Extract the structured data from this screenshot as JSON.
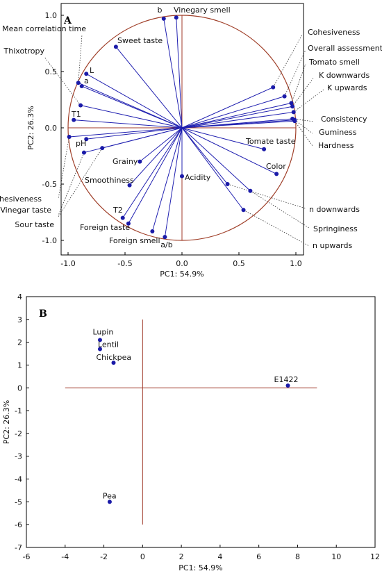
{
  "chart_data": [
    {
      "panel": "A",
      "type": "scatter",
      "subtype": "pca-loadings",
      "xlabel": "PC1: 54.9%",
      "ylabel": "PC2: 26.3%",
      "xlim": [
        -1.0,
        1.0
      ],
      "ylim": [
        -1.0,
        1.0
      ],
      "xticks": [
        "-1.0",
        "-0.5",
        "0.0",
        "0.5",
        "1.0"
      ],
      "yticks": [
        "1.0",
        "0.5",
        "0.0",
        "-0.5",
        "-1.0"
      ],
      "unit_circle": true,
      "points": [
        {
          "label": "b",
          "x": -0.16,
          "y": 0.97
        },
        {
          "label": "Vinegary smell",
          "x": -0.05,
          "y": 0.98
        },
        {
          "label": "Sweet taste",
          "x": -0.58,
          "y": 0.72
        },
        {
          "label": "L",
          "x": -0.84,
          "y": 0.48
        },
        {
          "label": "a",
          "x": -0.88,
          "y": 0.37
        },
        {
          "label": "Mean correlation time",
          "x": -0.91,
          "y": 0.4
        },
        {
          "label": "Thixotropy",
          "x": -0.89,
          "y": 0.2
        },
        {
          "label": "T1",
          "x": -0.95,
          "y": 0.07
        },
        {
          "label": "Adhesiveness",
          "x": -0.99,
          "y": -0.08
        },
        {
          "label": "pH",
          "x": -0.84,
          "y": -0.1
        },
        {
          "label": "Vinegar taste",
          "x": -0.86,
          "y": -0.22
        },
        {
          "label": "Sour taste",
          "x": -0.7,
          "y": -0.18
        },
        {
          "label": "Grainy",
          "x": -0.37,
          "y": -0.3
        },
        {
          "label": "Smoothiness",
          "x": -0.46,
          "y": -0.51
        },
        {
          "label": "T2",
          "x": -0.52,
          "y": -0.8
        },
        {
          "label": "Foreign taste",
          "x": -0.47,
          "y": -0.85
        },
        {
          "label": "Foreign smell",
          "x": -0.26,
          "y": -0.92
        },
        {
          "label": "a/b",
          "x": -0.15,
          "y": -0.97
        },
        {
          "label": "Acidity",
          "x": 0.0,
          "y": -0.43
        },
        {
          "label": "Cohesiveness",
          "x": 0.8,
          "y": 0.36
        },
        {
          "label": "Overall assessment",
          "x": 0.9,
          "y": 0.28
        },
        {
          "label": "Tomato smell",
          "x": 0.96,
          "y": 0.22
        },
        {
          "label": "K downwards",
          "x": 0.97,
          "y": 0.19
        },
        {
          "label": "K upwards",
          "x": 0.98,
          "y": 0.14
        },
        {
          "label": "Consistency",
          "x": 0.97,
          "y": 0.08
        },
        {
          "label": "Guminess",
          "x": 0.99,
          "y": 0.07
        },
        {
          "label": "Hardness",
          "x": 0.99,
          "y": 0.06
        },
        {
          "label": "Tomate taste",
          "x": 0.72,
          "y": -0.19
        },
        {
          "label": "Color",
          "x": 0.83,
          "y": -0.41
        },
        {
          "label": "n downwards",
          "x": 0.4,
          "y": -0.5
        },
        {
          "label": "Springiness",
          "x": 0.6,
          "y": -0.56
        },
        {
          "label": "n upwards",
          "x": 0.54,
          "y": -0.73
        }
      ]
    },
    {
      "panel": "B",
      "type": "scatter",
      "subtype": "pca-scores",
      "xlabel": "PC1: 54.9%",
      "ylabel": "PC2: 26.3%",
      "xlim": [
        -6,
        12
      ],
      "ylim": [
        -7,
        4
      ],
      "xticks": [
        "-6",
        "-4",
        "-2",
        "0",
        "2",
        "4",
        "6",
        "8",
        "10",
        "12"
      ],
      "yticks": [
        "4",
        "3",
        "2",
        "1",
        "0",
        "-1",
        "-2",
        "-3",
        "-4",
        "-5",
        "-6",
        "-7"
      ],
      "points": [
        {
          "label": "Lupin",
          "x": -2.2,
          "y": 2.1
        },
        {
          "label": "Lentil",
          "x": -2.2,
          "y": 1.7
        },
        {
          "label": "Chickpea",
          "x": -1.5,
          "y": 1.1
        },
        {
          "label": "E1422",
          "x": 7.5,
          "y": 0.1
        },
        {
          "label": "Pea",
          "x": -1.7,
          "y": -5.0
        }
      ]
    }
  ],
  "colors": {
    "points": "#1a1aa8",
    "vectors": "#2020b0",
    "circle": "#a0402a",
    "axes": "#a03a2a",
    "frame": "#000000"
  },
  "panel_letters": {
    "a": "A",
    "b": "B"
  }
}
